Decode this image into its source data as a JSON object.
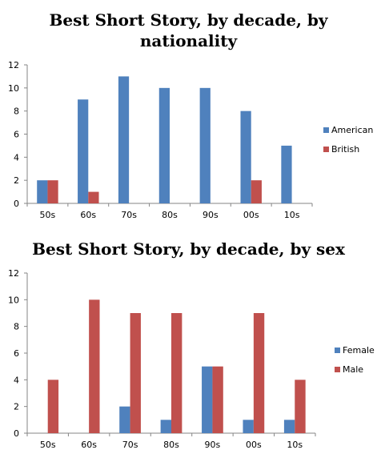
{
  "chart_data": [
    {
      "type": "bar",
      "title": "Best Short Story, by decade, by nationality",
      "xlabel": "",
      "ylabel": "",
      "categories": [
        "50s",
        "60s",
        "70s",
        "80s",
        "90s",
        "00s",
        "10s"
      ],
      "series": [
        {
          "name": "American",
          "color": "#4F81BD",
          "values": [
            2,
            9,
            11,
            10,
            10,
            8,
            5
          ]
        },
        {
          "name": "British",
          "color": "#C0504D",
          "values": [
            2,
            1,
            0,
            0,
            0,
            2,
            0
          ]
        }
      ],
      "ylim": [
        0,
        12
      ],
      "yticks": [
        "0",
        "2",
        "4",
        "6",
        "8",
        "10",
        "12"
      ],
      "grid": false,
      "legend": "right"
    },
    {
      "type": "bar",
      "title": "Best Short Story, by decade, by sex",
      "xlabel": "",
      "ylabel": "",
      "categories": [
        "50s",
        "60s",
        "70s",
        "80s",
        "90s",
        "00s",
        "10s"
      ],
      "series": [
        {
          "name": "Female",
          "color": "#4F81BD",
          "values": [
            0,
            0,
            2,
            1,
            5,
            1,
            1
          ]
        },
        {
          "name": "Male",
          "color": "#C0504D",
          "values": [
            4,
            10,
            9,
            9,
            5,
            9,
            4
          ]
        }
      ],
      "ylim": [
        0,
        12
      ],
      "yticks": [
        "0",
        "2",
        "4",
        "6",
        "8",
        "10",
        "12"
      ],
      "grid": false,
      "legend": "right"
    }
  ]
}
